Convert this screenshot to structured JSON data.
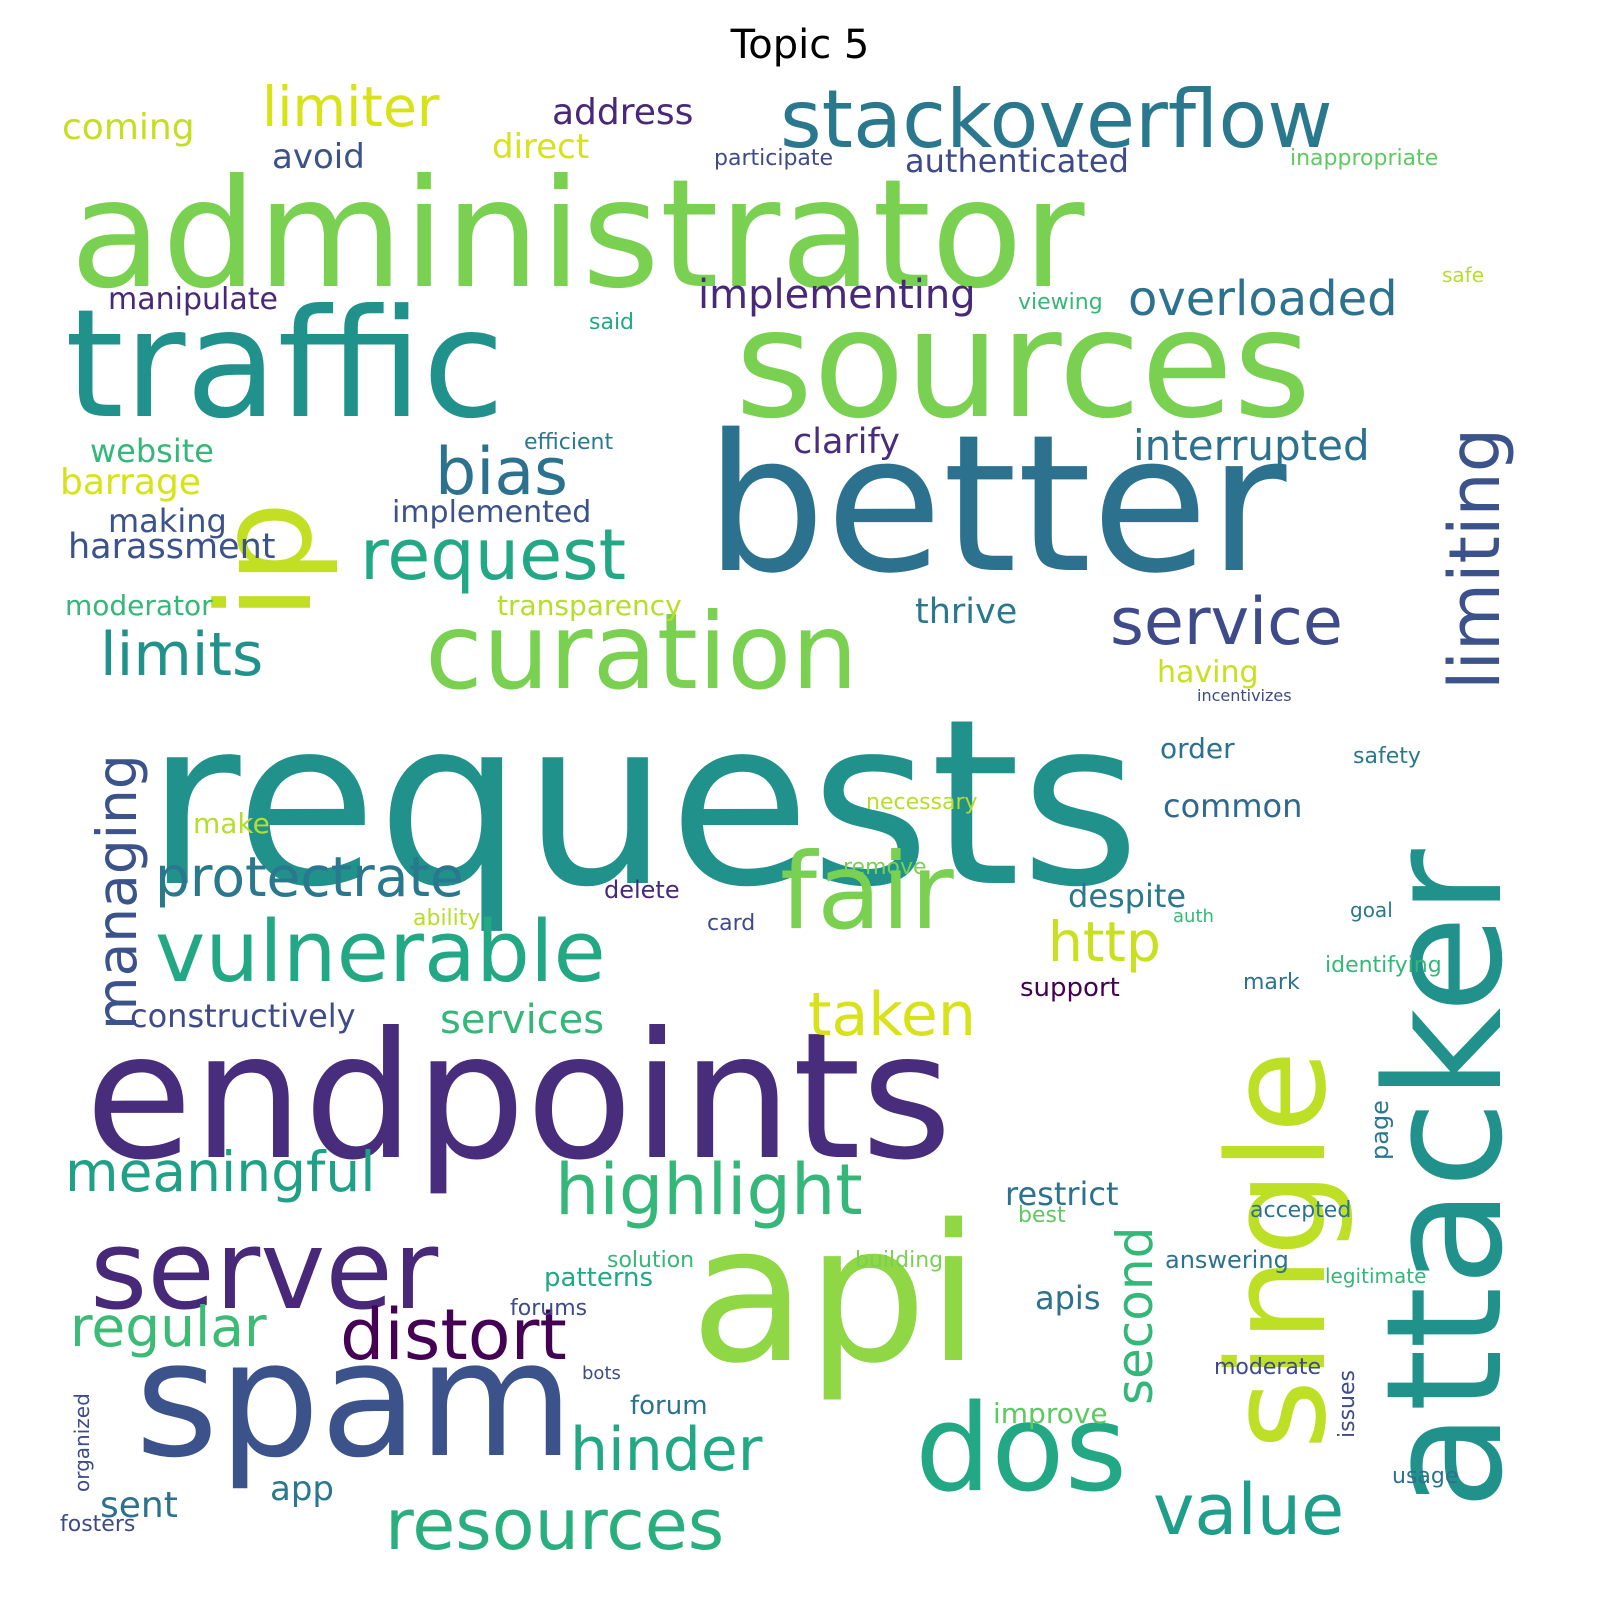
{
  "title": "Topic 5",
  "colormap": "viridis",
  "background": "#ffffff",
  "words": [
    {
      "text": "requests",
      "color": "#21918c"
    },
    {
      "text": "administrator",
      "color": "#7ad151"
    },
    {
      "text": "endpoints",
      "color": "#472d7b"
    },
    {
      "text": "traffic",
      "color": "#21918c"
    },
    {
      "text": "sources",
      "color": "#7ad151"
    },
    {
      "text": "better",
      "color": "#2c728e"
    },
    {
      "text": "api",
      "color": "#8fd744"
    },
    {
      "text": "attacker",
      "color": "#21918c",
      "orientation": "vertical"
    },
    {
      "text": "single",
      "color": "#bddf26",
      "orientation": "vertical"
    },
    {
      "text": "spam",
      "color": "#3b528b"
    },
    {
      "text": "ip",
      "color": "#c2df23",
      "orientation": "vertical"
    },
    {
      "text": "server",
      "color": "#482878"
    },
    {
      "text": "curation",
      "color": "#7ad151"
    },
    {
      "text": "fair",
      "color": "#7ad151"
    },
    {
      "text": "stackoverflow",
      "color": "#2a788e"
    },
    {
      "text": "vulnerable",
      "color": "#22a884"
    },
    {
      "text": "dos",
      "color": "#22a884"
    },
    {
      "text": "limiting",
      "color": "#3b528b",
      "orientation": "vertical"
    },
    {
      "text": "request",
      "color": "#22a884"
    },
    {
      "text": "bias",
      "color": "#2c728e"
    },
    {
      "text": "service",
      "color": "#3e4a89"
    },
    {
      "text": "limits",
      "color": "#21918c"
    },
    {
      "text": "limiter",
      "color": "#d8e219"
    },
    {
      "text": "highlight",
      "color": "#35b779"
    },
    {
      "text": "resources",
      "color": "#29af7f"
    },
    {
      "text": "value",
      "color": "#1f9e89"
    },
    {
      "text": "distort",
      "color": "#440154"
    },
    {
      "text": "meaningful",
      "color": "#1fa187"
    },
    {
      "text": "regular",
      "color": "#3bbb75"
    },
    {
      "text": "managing",
      "color": "#3b528b",
      "orientation": "vertical"
    },
    {
      "text": "protectrate",
      "color": "#2a788e"
    },
    {
      "text": "overloaded",
      "color": "#2c728e"
    },
    {
      "text": "http",
      "color": "#c8e020"
    },
    {
      "text": "taken",
      "color": "#d8e219"
    },
    {
      "text": "hinder",
      "color": "#22a884"
    },
    {
      "text": "interrupted",
      "color": "#2c728e"
    },
    {
      "text": "implementing",
      "color": "#482878"
    },
    {
      "text": "second",
      "color": "#35b779",
      "orientation": "vertical"
    },
    {
      "text": "services",
      "color": "#35b779"
    },
    {
      "text": "thrive",
      "color": "#2a788e"
    },
    {
      "text": "clarify",
      "color": "#472d7b"
    },
    {
      "text": "harassment",
      "color": "#3b528b"
    },
    {
      "text": "authenticated",
      "color": "#3e4a89"
    },
    {
      "text": "address",
      "color": "#482878"
    },
    {
      "text": "coming",
      "color": "#c2df23"
    },
    {
      "text": "avoid",
      "color": "#3b528b"
    },
    {
      "text": "direct",
      "color": "#d8e219"
    },
    {
      "text": "manipulate",
      "color": "#482878"
    },
    {
      "text": "barrage",
      "color": "#d8e219"
    },
    {
      "text": "website",
      "color": "#35b779"
    },
    {
      "text": "making",
      "color": "#3b528b"
    },
    {
      "text": "implemented",
      "color": "#3b528b"
    },
    {
      "text": "moderator",
      "color": "#35b779"
    },
    {
      "text": "transparency",
      "color": "#b5de2b"
    },
    {
      "text": "restrict",
      "color": "#2c728e"
    },
    {
      "text": "despite",
      "color": "#2a788e"
    },
    {
      "text": "common",
      "color": "#31688e"
    },
    {
      "text": "order",
      "color": "#2c728e"
    },
    {
      "text": "apis",
      "color": "#2c728e"
    },
    {
      "text": "constructively",
      "color": "#3e4a89"
    },
    {
      "text": "make",
      "color": "#b5de2b"
    },
    {
      "text": "sent",
      "color": "#2c728e"
    },
    {
      "text": "app",
      "color": "#2a788e"
    },
    {
      "text": "patterns",
      "color": "#22a884"
    },
    {
      "text": "improve",
      "color": "#5ec962"
    },
    {
      "text": "forum",
      "color": "#2c728e"
    },
    {
      "text": "support",
      "color": "#440154"
    },
    {
      "text": "delete",
      "color": "#482878"
    },
    {
      "text": "page",
      "color": "#2a788e",
      "orientation": "vertical"
    },
    {
      "text": "answering",
      "color": "#2c728e"
    },
    {
      "text": "having",
      "color": "#c8e020"
    },
    {
      "text": "participate",
      "color": "#3e4a89"
    },
    {
      "text": "inappropriate",
      "color": "#5ec962"
    },
    {
      "text": "viewing",
      "color": "#35b779"
    },
    {
      "text": "efficient",
      "color": "#2a788e"
    },
    {
      "text": "said",
      "color": "#22a884"
    },
    {
      "text": "safe",
      "color": "#b5de2b"
    },
    {
      "text": "incentivizes",
      "color": "#3e4a89"
    },
    {
      "text": "safety",
      "color": "#2a788e"
    },
    {
      "text": "necessary",
      "color": "#b5de2b"
    },
    {
      "text": "remove",
      "color": "#7ad151"
    },
    {
      "text": "ability",
      "color": "#b5de2b"
    },
    {
      "text": "card",
      "color": "#3e4a89"
    },
    {
      "text": "auth",
      "color": "#35b779"
    },
    {
      "text": "goal",
      "color": "#2a788e"
    },
    {
      "text": "identifying",
      "color": "#35b779"
    },
    {
      "text": "mark",
      "color": "#2c728e"
    },
    {
      "text": "best",
      "color": "#5ec962"
    },
    {
      "text": "accepted",
      "color": "#2c728e"
    },
    {
      "text": "solution",
      "color": "#35b779"
    },
    {
      "text": "building",
      "color": "#7ad151"
    },
    {
      "text": "legitimate",
      "color": "#35b779"
    },
    {
      "text": "forums",
      "color": "#3e4a89"
    },
    {
      "text": "moderate",
      "color": "#3e4a89"
    },
    {
      "text": "bots",
      "color": "#3e4a89"
    },
    {
      "text": "issues",
      "color": "#3e4a89",
      "orientation": "vertical"
    },
    {
      "text": "usage",
      "color": "#2c728e"
    },
    {
      "text": "organized",
      "color": "#3e4a89",
      "orientation": "vertical"
    },
    {
      "text": "fosters",
      "color": "#3e4a89"
    }
  ]
}
